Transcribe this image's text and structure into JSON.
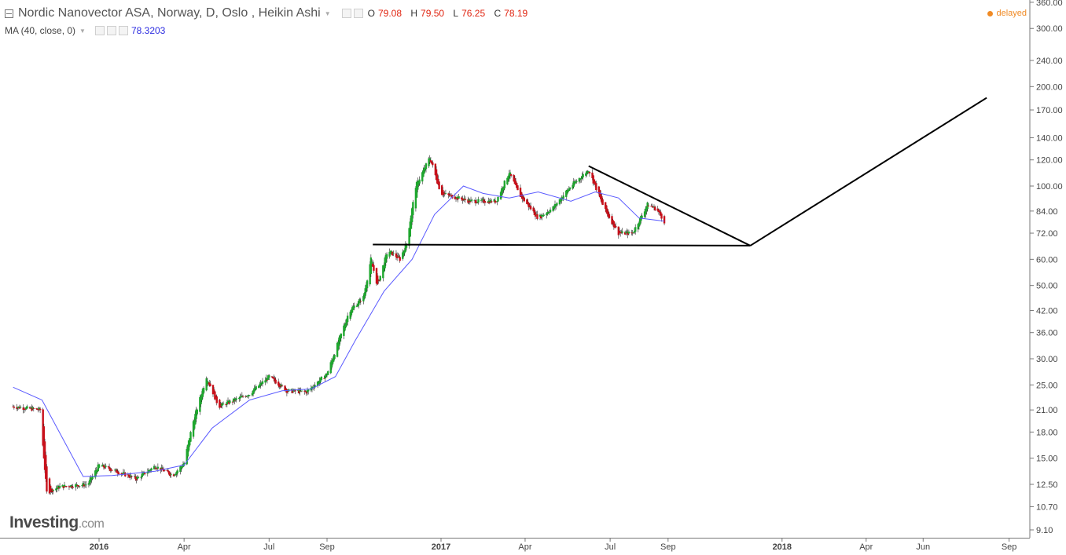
{
  "header": {
    "title": "Nordic Nanovector ASA, Norway, D, Oslo , Heikin Ashi",
    "ohlc": [
      {
        "key": "O",
        "value": "79.08"
      },
      {
        "key": "H",
        "value": "79.50"
      },
      {
        "key": "L",
        "value": "76.25"
      },
      {
        "key": "C",
        "value": "78.19"
      }
    ]
  },
  "indicator": {
    "label": "MA (40, close, 0)",
    "value": "78.3203"
  },
  "status": "delayed",
  "logo": {
    "brand": "Investing",
    "domain": ".com"
  },
  "colors": {
    "up": "#1fa72f",
    "down": "#c8101a",
    "ma": "#5a5aff",
    "trendline": "#000000",
    "delayed": "#f08a24"
  },
  "chart_data": {
    "type": "candlestick",
    "style": "Heikin Ashi",
    "scale": "log",
    "y_ticks": [
      360,
      300,
      240,
      200,
      170,
      140,
      120,
      100,
      84,
      72,
      60,
      50,
      42,
      36,
      30,
      25,
      21,
      18,
      15,
      12.5,
      10.7,
      9.1
    ],
    "y_tick_labels": [
      "360.00",
      "300.00",
      "240.00",
      "200.00",
      "170.00",
      "140.00",
      "120.00",
      "100.00",
      "84.00",
      "72.00",
      "60.00",
      "50.00",
      "42.00",
      "36.00",
      "30.00",
      "25.00",
      "21.00",
      "18.00",
      "15.00",
      "12.50",
      "10.70",
      "9.10"
    ],
    "x_ticks": [
      {
        "label": "2016",
        "date": "2016-01-01",
        "bold": true
      },
      {
        "label": "Apr",
        "date": "2016-04-01",
        "bold": false
      },
      {
        "label": "Jul",
        "date": "2016-07-01",
        "bold": false
      },
      {
        "label": "Sep",
        "date": "2016-09-01",
        "bold": false
      },
      {
        "label": "2017",
        "date": "2017-01-01",
        "bold": true
      },
      {
        "label": "Apr",
        "date": "2017-04-01",
        "bold": false
      },
      {
        "label": "Jul",
        "date": "2017-07-01",
        "bold": false
      },
      {
        "label": "Sep",
        "date": "2017-09-01",
        "bold": false
      },
      {
        "label": "2018",
        "date": "2018-01-01",
        "bold": true
      },
      {
        "label": "Apr",
        "date": "2018-04-01",
        "bold": false
      },
      {
        "label": "Jun",
        "date": "2018-06-01",
        "bold": false
      },
      {
        "label": "Sep",
        "date": "2018-09-01",
        "bold": false
      }
    ],
    "price_path": [
      [
        "2015-10-01",
        21.5
      ],
      [
        "2015-10-30",
        21.0
      ],
      [
        "2015-11-06",
        11.8
      ],
      [
        "2015-11-20",
        12.3
      ],
      [
        "2015-12-20",
        12.5
      ],
      [
        "2016-01-01",
        14.3
      ],
      [
        "2016-02-10",
        13.0
      ],
      [
        "2016-03-01",
        14.2
      ],
      [
        "2016-03-20",
        13.3
      ],
      [
        "2016-04-01",
        14.5
      ],
      [
        "2016-04-10",
        19.0
      ],
      [
        "2016-04-25",
        26.5
      ],
      [
        "2016-05-08",
        21.5
      ],
      [
        "2016-06-10",
        23.5
      ],
      [
        "2016-07-01",
        26.5
      ],
      [
        "2016-07-20",
        24.0
      ],
      [
        "2016-08-10",
        23.8
      ],
      [
        "2016-09-01",
        27.0
      ],
      [
        "2016-09-25",
        42.0
      ],
      [
        "2016-10-10",
        46.0
      ],
      [
        "2016-10-18",
        60.0
      ],
      [
        "2016-10-25",
        50.0
      ],
      [
        "2016-11-05",
        64.0
      ],
      [
        "2016-11-18",
        60.0
      ],
      [
        "2016-11-25",
        67.0
      ],
      [
        "2016-12-05",
        100.0
      ],
      [
        "2016-12-20",
        122.0
      ],
      [
        "2017-01-01",
        95.0
      ],
      [
        "2017-02-01",
        90.0
      ],
      [
        "2017-03-01",
        90.0
      ],
      [
        "2017-03-15",
        110.0
      ],
      [
        "2017-03-25",
        95.0
      ],
      [
        "2017-04-15",
        80.0
      ],
      [
        "2017-05-01",
        86.0
      ],
      [
        "2017-05-20",
        100.0
      ],
      [
        "2017-06-08",
        112.0
      ],
      [
        "2017-06-25",
        85.0
      ],
      [
        "2017-07-10",
        72.0
      ],
      [
        "2017-07-25",
        72.0
      ],
      [
        "2017-08-10",
        88.0
      ],
      [
        "2017-08-20",
        85.0
      ],
      [
        "2017-08-28",
        78.19
      ]
    ],
    "moving_average": [
      [
        "2015-10-01",
        24.6
      ],
      [
        "2015-11-01",
        22.5
      ],
      [
        "2015-12-15",
        13.2
      ],
      [
        "2016-01-15",
        13.3
      ],
      [
        "2016-03-01",
        13.7
      ],
      [
        "2016-04-01",
        14.3
      ],
      [
        "2016-05-01",
        18.5
      ],
      [
        "2016-06-10",
        22.5
      ],
      [
        "2016-07-15",
        24.0
      ],
      [
        "2016-08-15",
        24.3
      ],
      [
        "2016-09-10",
        26.5
      ],
      [
        "2016-10-01",
        34.0
      ],
      [
        "2016-11-01",
        48.0
      ],
      [
        "2016-12-01",
        60.0
      ],
      [
        "2016-12-25",
        82.0
      ],
      [
        "2017-01-25",
        100.0
      ],
      [
        "2017-02-15",
        95.0
      ],
      [
        "2017-03-15",
        92.0
      ],
      [
        "2017-04-15",
        96.0
      ],
      [
        "2017-05-20",
        90.0
      ],
      [
        "2017-06-15",
        96.0
      ],
      [
        "2017-07-10",
        92.0
      ],
      [
        "2017-08-01",
        80.0
      ],
      [
        "2017-08-28",
        78.3
      ]
    ],
    "drawings": [
      {
        "from": [
          "2016-10-20",
          66.5
        ],
        "to": [
          "2017-11-28",
          66.0
        ]
      },
      {
        "from": [
          "2017-06-08",
          115.0
        ],
        "to": [
          "2017-11-28",
          66.0
        ]
      },
      {
        "from": [
          "2017-11-28",
          66.0
        ],
        "to": [
          "2018-08-08",
          185.0
        ]
      }
    ]
  }
}
